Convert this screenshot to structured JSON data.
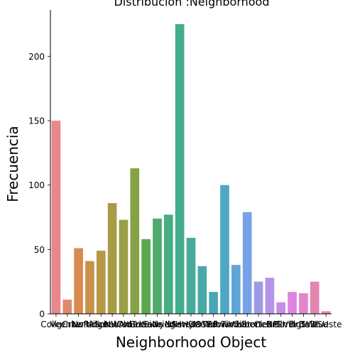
{
  "chart_data": {
    "type": "bar",
    "title": "Distribución :Neighborhood",
    "xlabel": "Neighborhood Object",
    "ylabel": "Frecuencia",
    "ylim": [
      0,
      236
    ],
    "yticks": [
      0,
      50,
      100,
      150,
      200
    ],
    "grid": false,
    "categories": [
      "CollgCr",
      "Veenker",
      "Crawfor",
      "NoRidge",
      "Mitchel",
      "Somerst",
      "NWAmes",
      "OldTown",
      "BrkSide",
      "Sawyer",
      "NridgHt",
      "NAmes",
      "SawyerW",
      "IDOTRR",
      "MeadowV",
      "Edwards",
      "Timber",
      "Gilbert",
      "StoneBr",
      "ClearCr",
      "NPkVill",
      "Blmngtn",
      "BrDale",
      "SWISU",
      "Blueste"
    ],
    "values": [
      150,
      11,
      51,
      41,
      49,
      86,
      73,
      113,
      58,
      74,
      77,
      225,
      59,
      37,
      17,
      100,
      38,
      79,
      25,
      28,
      9,
      17,
      16,
      25,
      2
    ],
    "colors": [
      "#e8878e",
      "#e0896f",
      "#d98a4e",
      "#c8924a",
      "#b89848",
      "#a89d47",
      "#989f45",
      "#86a244",
      "#5aa84f",
      "#4fab6a",
      "#48ad81",
      "#44ad8d",
      "#46ab9b",
      "#48a9a6",
      "#4aa8b3",
      "#4ea8c4",
      "#5fa6d6",
      "#78a2e6",
      "#9d9be8",
      "#b494e8",
      "#c98ce6",
      "#dc85e0",
      "#e385cc",
      "#e486b2",
      "#e3879d"
    ]
  }
}
